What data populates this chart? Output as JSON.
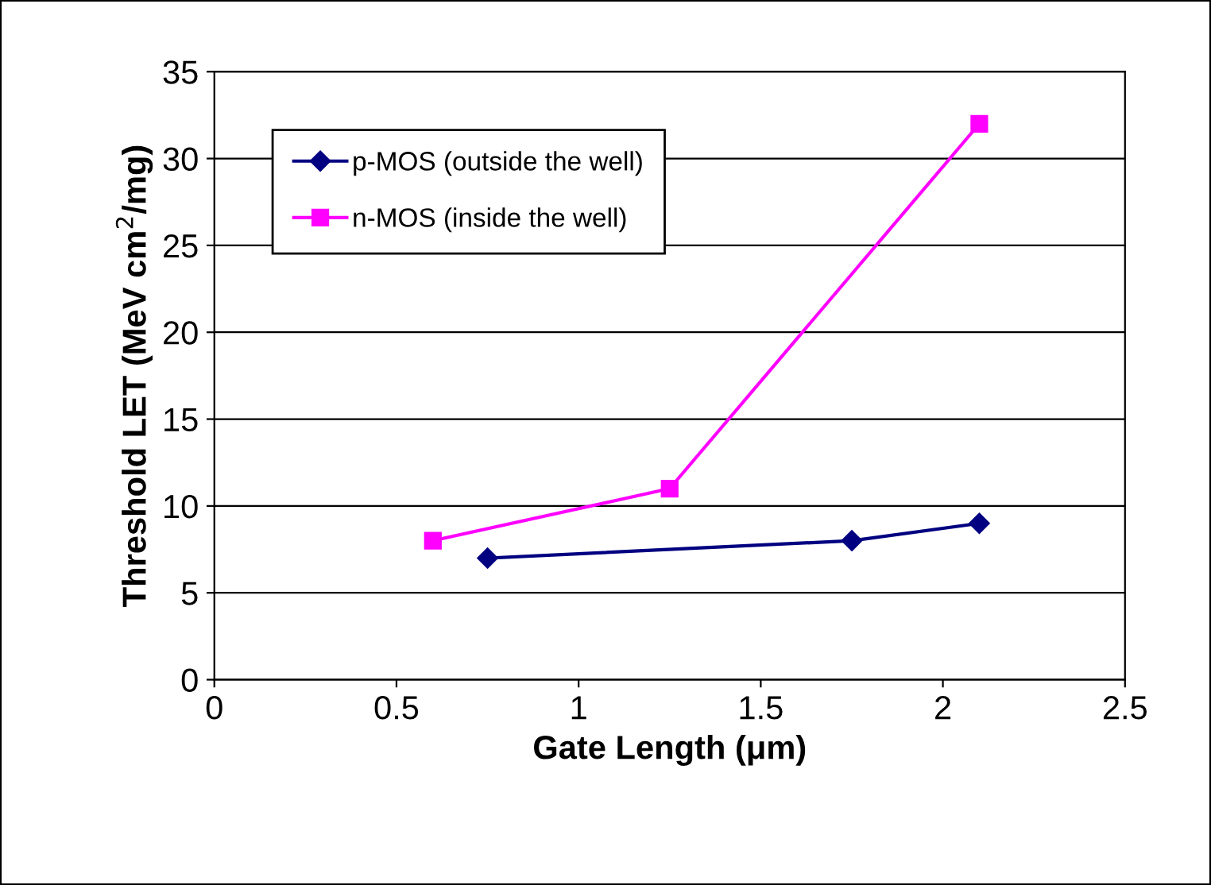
{
  "chart_data": {
    "type": "line",
    "xlabel": "Gate Length (μm)",
    "ylabel": "Threshold LET (MeV cm$^{2}$/mg)",
    "xlim": [
      0,
      2.5
    ],
    "xticks": [
      0,
      0.5,
      1,
      1.5,
      2,
      2.5
    ],
    "ylim": [
      0,
      35
    ],
    "yticks": [
      0,
      5,
      10,
      15,
      20,
      25,
      30,
      35
    ],
    "grid": "y",
    "legend": "top left",
    "series": [
      {
        "name": "p-MOS (outside the well)",
        "color": "#000080",
        "marker": "diamond",
        "x": [
          0.75,
          1.75,
          2.1
        ],
        "values": [
          7,
          8,
          9
        ]
      },
      {
        "name": "n-MOS (inside the well)",
        "color": "#ff00ff",
        "marker": "square",
        "x": [
          0.6,
          1.25,
          2.1
        ],
        "values": [
          8,
          11,
          32
        ]
      }
    ]
  }
}
